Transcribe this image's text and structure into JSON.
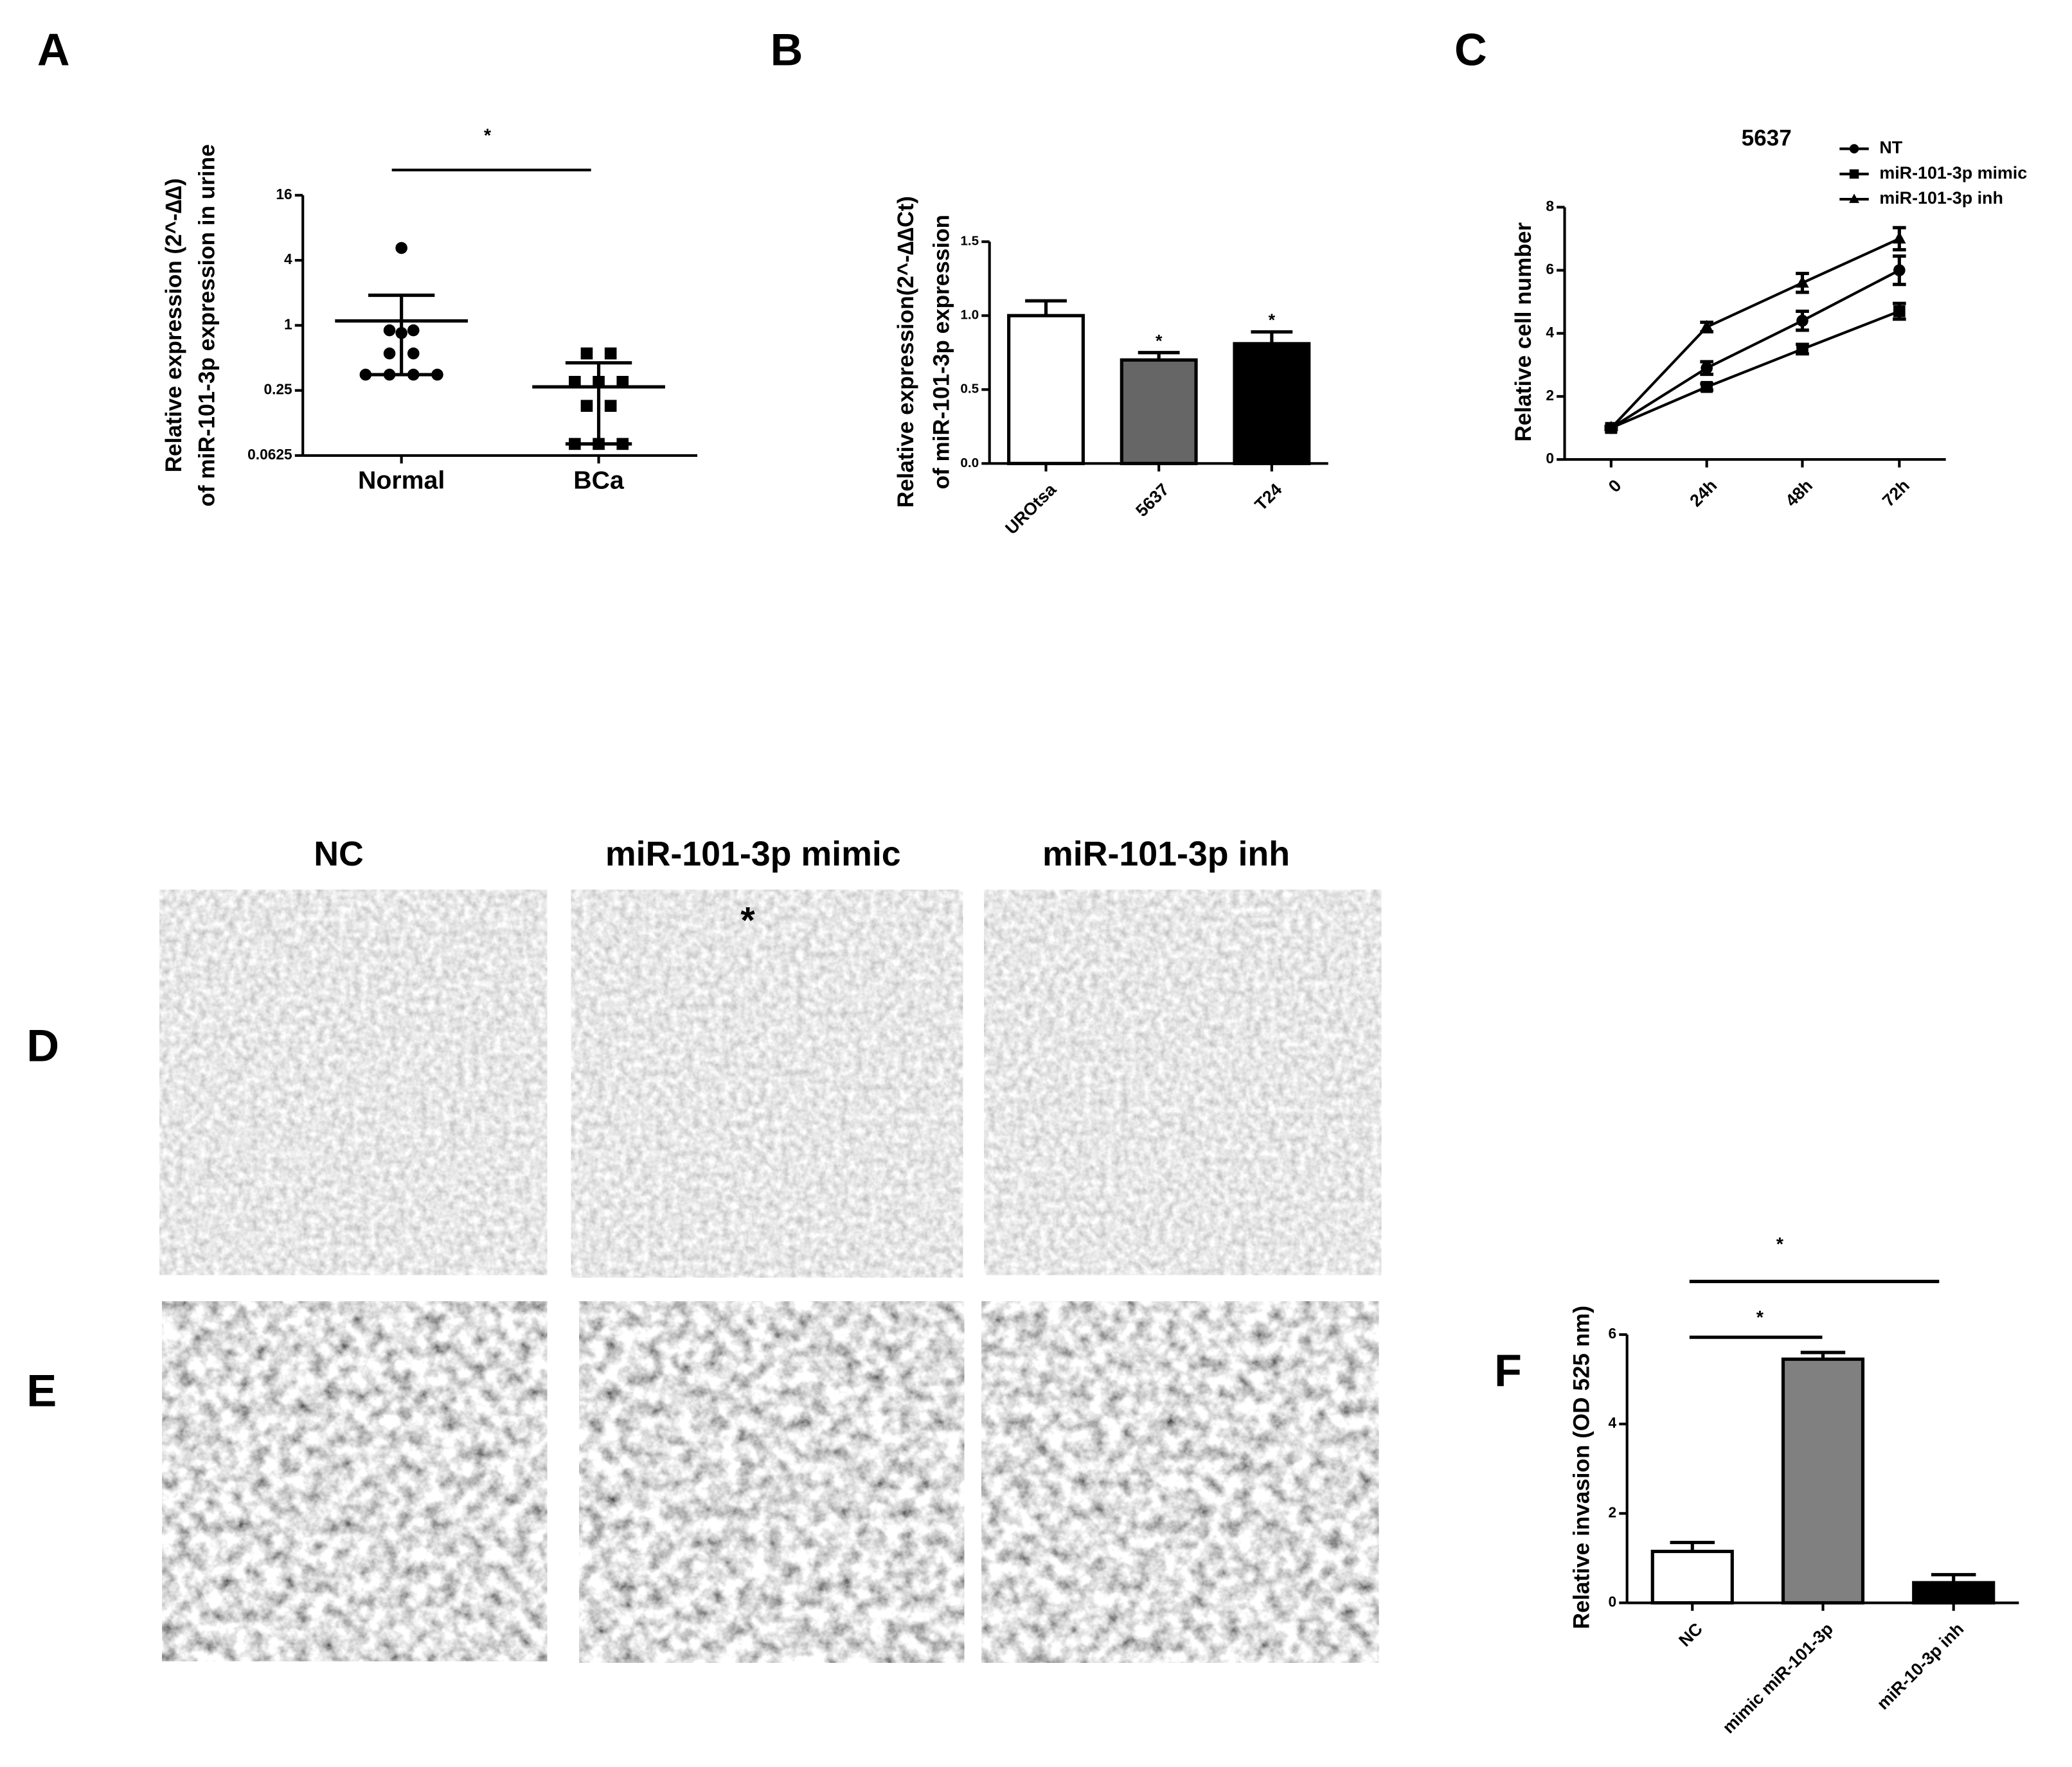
{
  "chart_data": [
    {
      "type": "scatter",
      "label": "A",
      "ylabel": [
        "Relative expression (2^-∆∆)",
        "of miR-101-3p expression in urine"
      ],
      "categories": [
        "Normal",
        "BCa"
      ],
      "points": [
        [
          5.2,
          0.9,
          0.9,
          0.85,
          0.55,
          0.55,
          0.35,
          0.35,
          0.35,
          0.35
        ],
        [
          0.55,
          0.55,
          0.3,
          0.3,
          0.3,
          0.18,
          0.18,
          0.08,
          0.08,
          0.08
        ]
      ],
      "mean": [
        1.1,
        0.27
      ],
      "error_bars": [
        [
          0.35,
          1.9
        ],
        [
          0.08,
          0.45
        ]
      ],
      "log_scale": 2,
      "ylim": [
        0.0625,
        16
      ],
      "yticks": [
        0.0625,
        0.25,
        1,
        4,
        16
      ],
      "color": "#000000",
      "annotations": [
        "*"
      ]
    },
    {
      "type": "bar",
      "label": "B",
      "ylabel": [
        "Relative expression(2^-∆∆Ct)",
        "of miR-101-3p expression"
      ],
      "categories": [
        "UROtsa",
        "5637",
        "T24"
      ],
      "values": [
        1.0,
        0.7,
        0.81
      ],
      "errors": [
        0.1,
        0.05,
        0.08
      ],
      "colors": [
        "#ffffff",
        "#666666",
        "#000000"
      ],
      "ylim": [
        0,
        1.5
      ],
      "yticks": [
        {
          "value": 0,
          "label": "0.0"
        },
        {
          "value": 0.5,
          "label": "0.5"
        },
        {
          "value": 1,
          "label": "1.0"
        },
        {
          "value": 1.5,
          "label": "1.5"
        }
      ],
      "annotations": [
        "*",
        "*"
      ]
    },
    {
      "type": "line",
      "label": "C",
      "title": "5637",
      "ylabel": [
        "Relative cell number"
      ],
      "categories": [
        "0",
        "24h",
        "48h",
        "72h"
      ],
      "series": [
        {
          "name": "NT",
          "marker": "circle",
          "color": "#000000",
          "values": [
            1,
            2.9,
            4.4,
            6.0
          ],
          "errors": [
            0.05,
            0.2,
            0.3,
            0.45
          ]
        },
        {
          "name": "miR-101-3p mimic",
          "marker": "square",
          "color": "#000000",
          "values": [
            1,
            2.3,
            3.5,
            4.7
          ],
          "errors": [
            0.05,
            0.1,
            0.15,
            0.25
          ]
        },
        {
          "name": "miR-101-3p inh",
          "marker": "triangle",
          "color": "#000000",
          "values": [
            1,
            4.2,
            5.6,
            7.0
          ],
          "errors": [
            0.05,
            0.15,
            0.3,
            0.35
          ]
        }
      ],
      "ylim": [
        0,
        8
      ],
      "yticks": [
        0,
        2,
        4,
        6,
        8
      ]
    },
    {
      "type": "bar",
      "label": "F",
      "ylabel": [
        "Relative invasion (OD 525 nm)"
      ],
      "categories": [
        "NC",
        "mimic miR-101-3p",
        "miR-10-3p inh"
      ],
      "values": [
        1.15,
        5.45,
        0.45
      ],
      "errors": [
        0.2,
        0.15,
        0.18
      ],
      "colors": [
        "#ffffff",
        "#808080",
        "#000000"
      ],
      "ylim": [
        0,
        6
      ],
      "yticks": [
        0,
        2,
        4,
        6
      ],
      "annotations": [
        "*",
        "*"
      ]
    }
  ],
  "images": {
    "label_d": "D",
    "label_e": "E",
    "columns": [
      "NC",
      "miR-101-3p mimic",
      "miR-101-3p inh"
    ],
    "annotation": "*"
  }
}
